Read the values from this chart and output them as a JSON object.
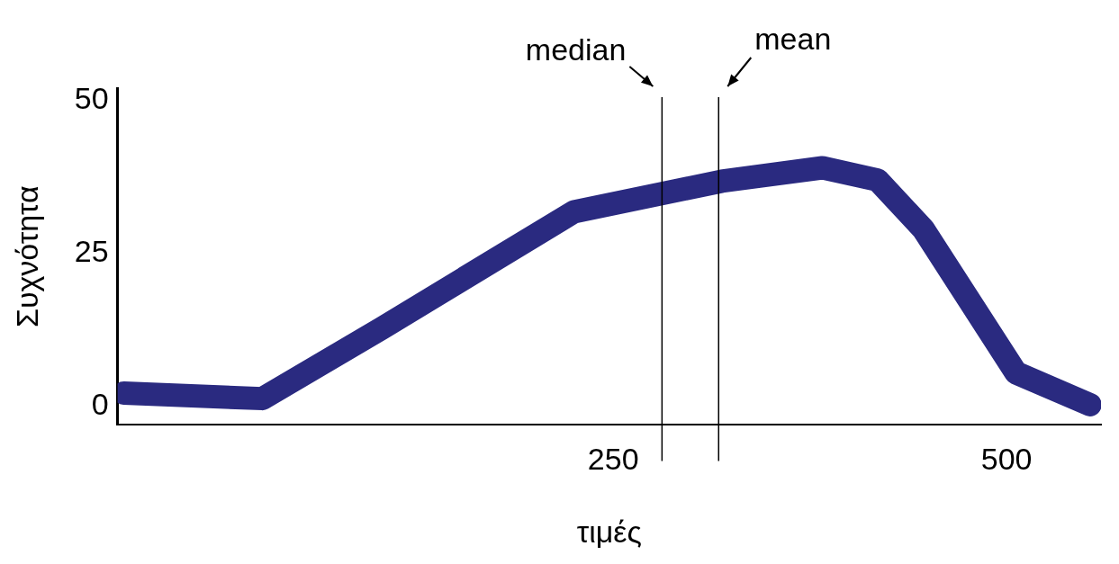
{
  "chart_data": {
    "type": "line",
    "xlabel": "τιμές",
    "ylabel": "Συχνότητα",
    "series": [
      {
        "color": "#2a2a80",
        "x": [
          -61,
          27,
          103,
          225,
          319,
          383,
          418,
          447,
          506,
          553
        ],
        "values": [
          2.2,
          1.3,
          12.8,
          31.8,
          36.8,
          39,
          37,
          29,
          5.5,
          0.3
        ]
      }
    ],
    "xlim": [
      -65,
      560
    ],
    "xticks": [
      250,
      500
    ],
    "ylim": [
      -3,
      52
    ],
    "yticks": [
      0,
      25,
      50
    ],
    "ref_lines": [
      {
        "axis": "x",
        "value": 281,
        "label": "median"
      },
      {
        "axis": "x",
        "value": 317,
        "label": "mean"
      }
    ],
    "grid": false,
    "legend": false,
    "marker": "none",
    "line_style": "solid"
  }
}
